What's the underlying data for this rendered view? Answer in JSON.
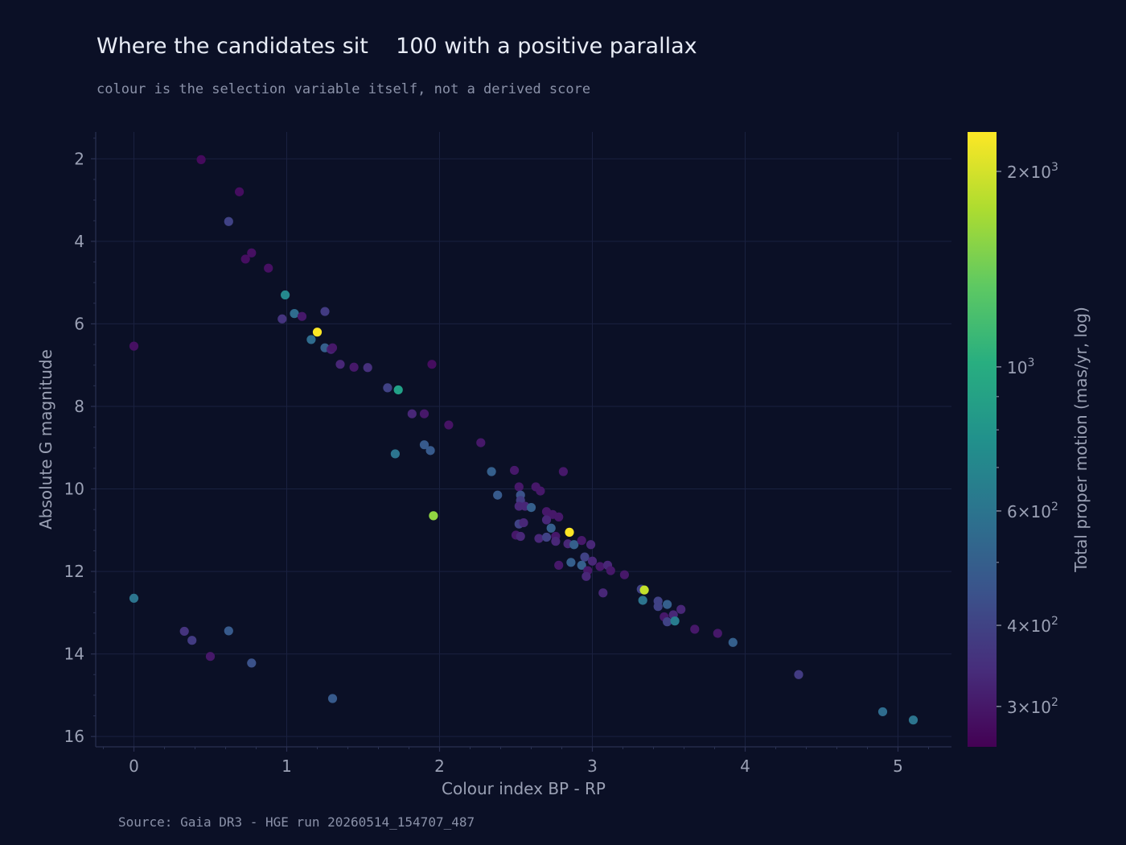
{
  "title": "Where the candidates sit    100 with a positive parallax",
  "subtitle": "colour is the selection variable itself, not a derived score",
  "source": "Source: Gaia DR3 - HGE run 20260514_154707_487",
  "colors": {
    "background": "#0b1026",
    "grid": "#1a2140",
    "axis_text": "#9aa0b4",
    "colormap": "viridis"
  },
  "chart_data": {
    "type": "scatter",
    "xlabel": "Colour index  BP - RP",
    "ylabel": "Absolute G magnitude",
    "colorbar_label": "Total proper motion  (mas/yr, log)",
    "xlim": [
      -0.25,
      5.35
    ],
    "ylim": [
      16.25,
      1.35
    ],
    "y_inverted": true,
    "x_ticks": [
      0,
      1,
      2,
      3,
      4,
      5
    ],
    "y_ticks": [
      2,
      4,
      6,
      8,
      10,
      12,
      14,
      16
    ],
    "grid": true,
    "color_scale": "log",
    "color_range": [
      260,
      2300
    ],
    "colorbar_ticks": [
      {
        "value": 2000,
        "mantissa": "2",
        "exp": "3"
      },
      {
        "value": 1000,
        "mantissa": "",
        "exp": "3"
      },
      {
        "value": 600,
        "mantissa": "6",
        "exp": "2"
      },
      {
        "value": 400,
        "mantissa": "4",
        "exp": "2"
      },
      {
        "value": 300,
        "mantissa": "3",
        "exp": "2"
      }
    ],
    "points": [
      {
        "x": 0.44,
        "y": 2.02,
        "c": 275
      },
      {
        "x": 0.69,
        "y": 2.8,
        "c": 280
      },
      {
        "x": 0.62,
        "y": 3.52,
        "c": 400
      },
      {
        "x": 0.77,
        "y": 4.28,
        "c": 285
      },
      {
        "x": 0.73,
        "y": 4.43,
        "c": 282
      },
      {
        "x": 0.88,
        "y": 4.65,
        "c": 285
      },
      {
        "x": 0.99,
        "y": 5.3,
        "c": 720
      },
      {
        "x": 1.05,
        "y": 5.75,
        "c": 560
      },
      {
        "x": 0.97,
        "y": 5.88,
        "c": 360
      },
      {
        "x": 1.1,
        "y": 5.82,
        "c": 300
      },
      {
        "x": 1.25,
        "y": 5.7,
        "c": 380
      },
      {
        "x": 1.2,
        "y": 6.2,
        "c": 2300
      },
      {
        "x": 1.16,
        "y": 6.38,
        "c": 560
      },
      {
        "x": 1.25,
        "y": 6.58,
        "c": 500
      },
      {
        "x": 1.29,
        "y": 6.62,
        "c": 320
      },
      {
        "x": 1.3,
        "y": 6.58,
        "c": 300
      },
      {
        "x": 0.0,
        "y": 6.54,
        "c": 285
      },
      {
        "x": 1.35,
        "y": 6.98,
        "c": 330
      },
      {
        "x": 1.44,
        "y": 7.05,
        "c": 300
      },
      {
        "x": 1.53,
        "y": 7.06,
        "c": 350
      },
      {
        "x": 1.95,
        "y": 6.98,
        "c": 280
      },
      {
        "x": 1.66,
        "y": 7.55,
        "c": 400
      },
      {
        "x": 1.73,
        "y": 7.6,
        "c": 900
      },
      {
        "x": 1.82,
        "y": 8.18,
        "c": 330
      },
      {
        "x": 1.9,
        "y": 8.18,
        "c": 300
      },
      {
        "x": 2.06,
        "y": 8.45,
        "c": 290
      },
      {
        "x": 2.27,
        "y": 8.88,
        "c": 300
      },
      {
        "x": 1.9,
        "y": 8.93,
        "c": 480
      },
      {
        "x": 1.94,
        "y": 9.07,
        "c": 480
      },
      {
        "x": 1.71,
        "y": 9.15,
        "c": 600
      },
      {
        "x": 2.34,
        "y": 9.58,
        "c": 500
      },
      {
        "x": 2.49,
        "y": 9.55,
        "c": 300
      },
      {
        "x": 2.81,
        "y": 9.58,
        "c": 300
      },
      {
        "x": 2.38,
        "y": 10.15,
        "c": 480
      },
      {
        "x": 2.52,
        "y": 9.95,
        "c": 300
      },
      {
        "x": 2.53,
        "y": 10.15,
        "c": 450
      },
      {
        "x": 2.53,
        "y": 10.28,
        "c": 380
      },
      {
        "x": 2.52,
        "y": 10.42,
        "c": 330
      },
      {
        "x": 2.56,
        "y": 10.42,
        "c": 330
      },
      {
        "x": 2.6,
        "y": 10.45,
        "c": 500
      },
      {
        "x": 2.63,
        "y": 9.95,
        "c": 300
      },
      {
        "x": 2.66,
        "y": 10.05,
        "c": 300
      },
      {
        "x": 1.96,
        "y": 10.65,
        "c": 1600
      },
      {
        "x": 2.7,
        "y": 10.55,
        "c": 300
      },
      {
        "x": 2.74,
        "y": 10.62,
        "c": 300
      },
      {
        "x": 2.78,
        "y": 10.68,
        "c": 300
      },
      {
        "x": 2.7,
        "y": 10.75,
        "c": 330
      },
      {
        "x": 2.52,
        "y": 10.85,
        "c": 400
      },
      {
        "x": 2.55,
        "y": 10.82,
        "c": 330
      },
      {
        "x": 2.73,
        "y": 10.95,
        "c": 500
      },
      {
        "x": 2.5,
        "y": 11.12,
        "c": 300
      },
      {
        "x": 2.53,
        "y": 11.15,
        "c": 330
      },
      {
        "x": 2.65,
        "y": 11.2,
        "c": 330
      },
      {
        "x": 2.7,
        "y": 11.17,
        "c": 400
      },
      {
        "x": 2.76,
        "y": 11.15,
        "c": 300
      },
      {
        "x": 2.76,
        "y": 11.27,
        "c": 330
      },
      {
        "x": 2.85,
        "y": 11.05,
        "c": 2300
      },
      {
        "x": 2.84,
        "y": 11.33,
        "c": 330
      },
      {
        "x": 2.88,
        "y": 11.35,
        "c": 500
      },
      {
        "x": 2.93,
        "y": 11.25,
        "c": 300
      },
      {
        "x": 2.99,
        "y": 11.35,
        "c": 330
      },
      {
        "x": 2.95,
        "y": 11.65,
        "c": 400
      },
      {
        "x": 2.86,
        "y": 11.78,
        "c": 500
      },
      {
        "x": 2.78,
        "y": 11.85,
        "c": 300
      },
      {
        "x": 2.93,
        "y": 11.85,
        "c": 500
      },
      {
        "x": 3.0,
        "y": 11.75,
        "c": 330
      },
      {
        "x": 3.05,
        "y": 11.88,
        "c": 300
      },
      {
        "x": 3.1,
        "y": 11.85,
        "c": 330
      },
      {
        "x": 2.97,
        "y": 11.98,
        "c": 300
      },
      {
        "x": 3.12,
        "y": 11.98,
        "c": 300
      },
      {
        "x": 2.96,
        "y": 12.12,
        "c": 330
      },
      {
        "x": 3.21,
        "y": 12.08,
        "c": 300
      },
      {
        "x": 3.07,
        "y": 12.52,
        "c": 330
      },
      {
        "x": 3.32,
        "y": 12.43,
        "c": 400
      },
      {
        "x": 3.34,
        "y": 12.45,
        "c": 1900
      },
      {
        "x": 3.33,
        "y": 12.7,
        "c": 600
      },
      {
        "x": 3.43,
        "y": 12.72,
        "c": 400
      },
      {
        "x": 3.43,
        "y": 12.85,
        "c": 400
      },
      {
        "x": 3.49,
        "y": 12.8,
        "c": 500
      },
      {
        "x": 3.58,
        "y": 12.92,
        "c": 330
      },
      {
        "x": 3.47,
        "y": 13.1,
        "c": 300
      },
      {
        "x": 3.53,
        "y": 13.05,
        "c": 330
      },
      {
        "x": 3.49,
        "y": 13.22,
        "c": 400
      },
      {
        "x": 3.54,
        "y": 13.2,
        "c": 650
      },
      {
        "x": 3.67,
        "y": 13.4,
        "c": 300
      },
      {
        "x": 3.82,
        "y": 13.5,
        "c": 300
      },
      {
        "x": 3.92,
        "y": 13.72,
        "c": 500
      },
      {
        "x": 0.0,
        "y": 12.65,
        "c": 600
      },
      {
        "x": 0.33,
        "y": 13.45,
        "c": 360
      },
      {
        "x": 0.38,
        "y": 13.67,
        "c": 380
      },
      {
        "x": 0.62,
        "y": 13.44,
        "c": 480
      },
      {
        "x": 0.5,
        "y": 14.06,
        "c": 300
      },
      {
        "x": 0.77,
        "y": 14.22,
        "c": 450
      },
      {
        "x": 1.3,
        "y": 15.08,
        "c": 480
      },
      {
        "x": 4.35,
        "y": 14.5,
        "c": 380
      },
      {
        "x": 4.9,
        "y": 15.4,
        "c": 560
      },
      {
        "x": 5.1,
        "y": 15.6,
        "c": 600
      }
    ]
  }
}
